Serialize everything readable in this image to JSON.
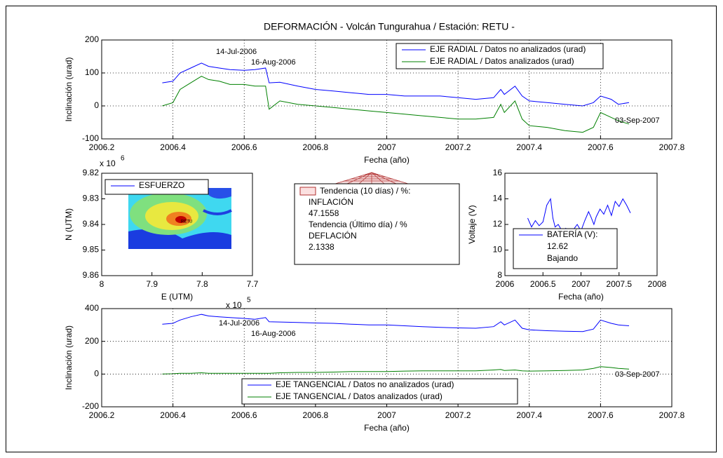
{
  "chart_data": [
    {
      "type": "line",
      "title": "DEFORMACIÓN - Volcán Tungurahua  /  Estación: RETU -",
      "ylabel": "Inclinación (urad)",
      "xlabel": "Fecha (año)",
      "xlim": [
        2006.2,
        2007.8
      ],
      "xticks": [
        2006.2,
        2006.4,
        2006.6,
        2006.8,
        2007,
        2007.2,
        2007.4,
        2007.6,
        2007.8
      ],
      "ylim": [
        -100,
        200
      ],
      "yticks": [
        -100,
        0,
        100,
        200
      ],
      "grid": true,
      "legend": "upper right",
      "annotations": [
        "14-Jul-2006",
        "16-Aug-2006",
        "03-Sep-2007"
      ],
      "x": [
        2006.37,
        2006.4,
        2006.42,
        2006.45,
        2006.48,
        2006.5,
        2006.53,
        2006.56,
        2006.6,
        2006.63,
        2006.66,
        2006.67,
        2006.7,
        2006.75,
        2006.8,
        2006.85,
        2006.9,
        2006.95,
        2007.0,
        2007.05,
        2007.1,
        2007.15,
        2007.2,
        2007.25,
        2007.3,
        2007.32,
        2007.33,
        2007.36,
        2007.38,
        2007.4,
        2007.45,
        2007.5,
        2007.55,
        2007.58,
        2007.6,
        2007.63,
        2007.65,
        2007.68
      ],
      "series": [
        {
          "name": "EJE RADIAL / Datos no analizados (urad)",
          "color": "#0000ff",
          "values": [
            70,
            75,
            100,
            115,
            130,
            120,
            115,
            110,
            108,
            110,
            115,
            70,
            72,
            60,
            50,
            45,
            40,
            35,
            35,
            30,
            30,
            30,
            25,
            20,
            25,
            50,
            35,
            60,
            30,
            15,
            10,
            5,
            0,
            10,
            30,
            20,
            5,
            10
          ]
        },
        {
          "name": "EJE RADIAL / Datos analizados (urad)",
          "color": "#008000",
          "values": [
            0,
            10,
            50,
            70,
            90,
            80,
            75,
            65,
            65,
            60,
            60,
            -10,
            15,
            5,
            0,
            -5,
            -10,
            -15,
            -20,
            -25,
            -30,
            -35,
            -40,
            -40,
            -35,
            5,
            -20,
            15,
            -40,
            -60,
            -65,
            -75,
            -80,
            -65,
            -20,
            -35,
            -45,
            -55
          ]
        }
      ]
    },
    {
      "type": "map",
      "xlabel": "E (UTM)",
      "ylabel": "N (UTM)",
      "xlim": [
        8,
        7.7
      ],
      "xticks": [
        8,
        7.9,
        7.8,
        7.7
      ],
      "ylim": [
        9.86,
        9.82
      ],
      "yticks": [
        9.82,
        9.83,
        9.84,
        9.85,
        9.86
      ],
      "x_scale": "x 10",
      "x_scale_exp": "5",
      "y_scale": "x 10",
      "y_scale_exp": "6",
      "station": "RETU",
      "legend": "upper left",
      "series": [
        {
          "name": "ESFUERZO",
          "color": "#0000ff"
        }
      ]
    },
    {
      "type": "textbox",
      "legend_entry": "Tendencia (10 días) / %:",
      "color": "#b03030",
      "lines": [
        "INFLACIÓN",
        "47.1558",
        "Tendencia (Último día) / %",
        "DEFLACIÓN",
        "2.1338"
      ]
    },
    {
      "type": "line",
      "ylabel": "Voltaje (V)",
      "xlabel": "Fecha (año)",
      "xlim": [
        2006,
        2008
      ],
      "xticks": [
        2006,
        2006.5,
        2007,
        2007.5,
        2008
      ],
      "ylim": [
        8,
        16
      ],
      "yticks": [
        8,
        10,
        12,
        14,
        16
      ],
      "grid": false,
      "legend": "lower left",
      "legend_extra": [
        "12.62",
        "Bajando"
      ],
      "x": [
        2006.3,
        2006.35,
        2006.4,
        2006.45,
        2006.5,
        2006.55,
        2006.6,
        2006.63,
        2006.66,
        2006.7,
        2006.75,
        2006.8,
        2006.85,
        2006.9,
        2006.95,
        2007.0,
        2007.05,
        2007.1,
        2007.13,
        2007.17,
        2007.2,
        2007.25,
        2007.3,
        2007.35,
        2007.4,
        2007.45,
        2007.5,
        2007.55,
        2007.6,
        2007.65
      ],
      "series": [
        {
          "name": "BATERÍA (V):",
          "color": "#0000ff",
          "values": [
            12.5,
            11.8,
            12.3,
            11.9,
            12.2,
            13.5,
            14.0,
            12.5,
            11.8,
            12.0,
            11.5,
            11.7,
            11.2,
            11.6,
            12.0,
            11.5,
            12.3,
            13.0,
            12.6,
            12.0,
            12.6,
            13.2,
            12.8,
            13.5,
            12.7,
            13.8,
            13.4,
            14.0,
            13.5,
            12.9
          ]
        }
      ]
    },
    {
      "type": "line",
      "ylabel": "Inclinación (urad)",
      "xlabel": "Fecha (año)",
      "xlim": [
        2006.2,
        2007.8
      ],
      "xticks": [
        2006.2,
        2006.4,
        2006.6,
        2006.8,
        2007,
        2007.2,
        2007.4,
        2007.6,
        2007.8
      ],
      "ylim": [
        -200,
        400
      ],
      "yticks": [
        -200,
        0,
        200,
        400
      ],
      "grid": true,
      "legend": "lower center",
      "annotations": [
        "14-Jul-2006",
        "16-Aug-2006",
        "03-Sep-2007"
      ],
      "x": [
        2006.37,
        2006.4,
        2006.42,
        2006.45,
        2006.48,
        2006.5,
        2006.53,
        2006.56,
        2006.6,
        2006.63,
        2006.66,
        2006.67,
        2006.7,
        2006.75,
        2006.8,
        2006.85,
        2006.9,
        2006.95,
        2007.0,
        2007.05,
        2007.1,
        2007.15,
        2007.2,
        2007.25,
        2007.3,
        2007.32,
        2007.33,
        2007.36,
        2007.38,
        2007.4,
        2007.45,
        2007.5,
        2007.55,
        2007.58,
        2007.6,
        2007.63,
        2007.65,
        2007.68
      ],
      "series": [
        {
          "name": "EJE TANGENCIAL / Datos no analizados (urad)",
          "color": "#0000ff",
          "values": [
            305,
            310,
            330,
            350,
            365,
            355,
            350,
            345,
            340,
            335,
            345,
            320,
            318,
            315,
            312,
            310,
            305,
            300,
            300,
            295,
            290,
            285,
            282,
            280,
            290,
            320,
            300,
            330,
            280,
            270,
            265,
            262,
            260,
            275,
            330,
            310,
            300,
            295
          ]
        },
        {
          "name": "EJE TANGENCIAL / Datos analizados (urad)",
          "color": "#008000",
          "values": [
            0,
            2,
            5,
            5,
            8,
            5,
            5,
            5,
            5,
            5,
            5,
            5,
            8,
            10,
            10,
            12,
            15,
            15,
            15,
            18,
            20,
            20,
            20,
            20,
            25,
            28,
            22,
            25,
            20,
            18,
            20,
            22,
            25,
            35,
            45,
            40,
            35,
            30
          ]
        }
      ]
    }
  ]
}
